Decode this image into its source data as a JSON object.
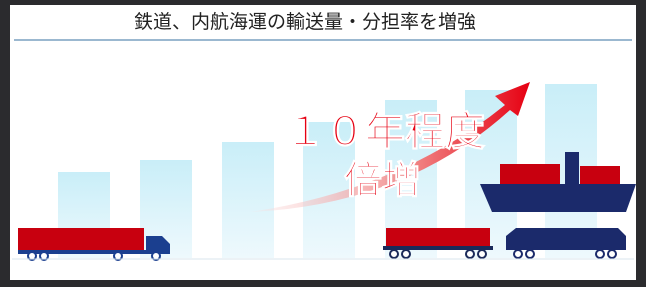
{
  "header": {
    "title": "鉄道、内航海運の輸送量・分担率を増強"
  },
  "callout": {
    "line1": "１０年程度",
    "line2": "倍増"
  }
}
